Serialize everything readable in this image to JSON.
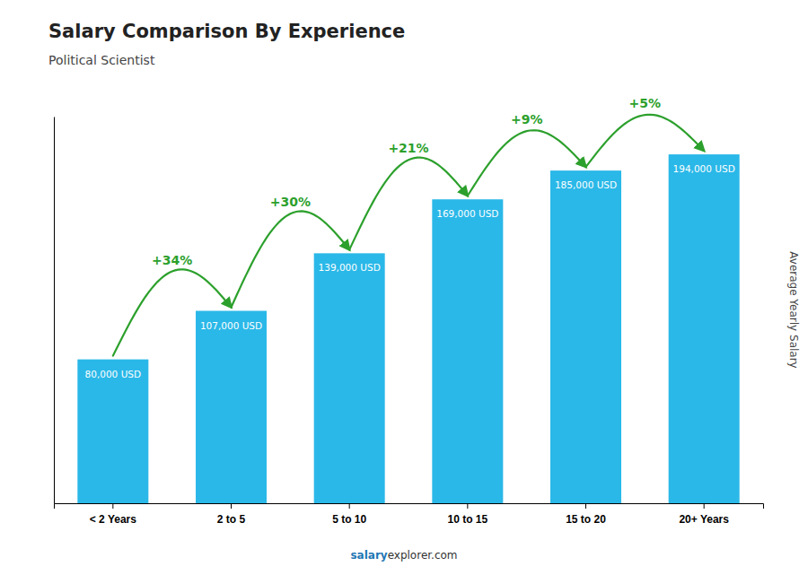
{
  "chart_data": {
    "type": "bar",
    "title": "Salary Comparison By Experience",
    "subtitle": "Political Scientist",
    "ylabel": "Average Yearly Salary",
    "categories": [
      "< 2 Years",
      "2 to 5",
      "5 to 10",
      "10 to 15",
      "15 to 20",
      "20+ Years"
    ],
    "values": [
      80000,
      107000,
      139000,
      169000,
      185000,
      194000
    ],
    "value_labels": [
      "80,000 USD",
      "107,000 USD",
      "139,000 USD",
      "169,000 USD",
      "185,000 USD",
      "194,000 USD"
    ],
    "data_labels": true,
    "color": "#2ab8e8",
    "ylim": [
      0,
      215000
    ],
    "tick_labels": "x",
    "grid": false,
    "annotations": [
      "+34%",
      "+30%",
      "+21%",
      "+9%",
      "+5%"
    ],
    "footer": [
      "salary",
      "explorer.com"
    ]
  }
}
